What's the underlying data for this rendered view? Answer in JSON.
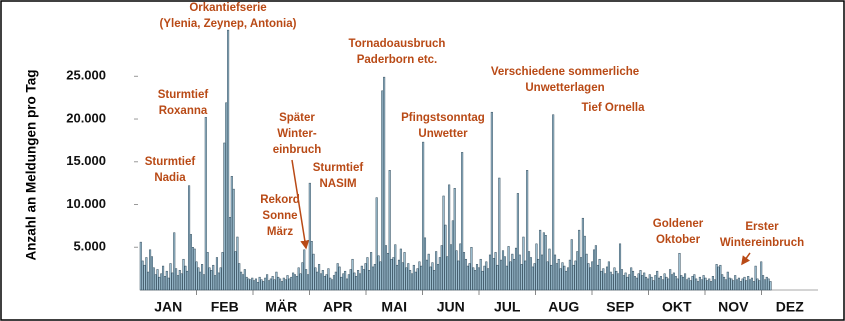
{
  "chart_data": {
    "type": "bar",
    "y_label": "Anzahl an Meldungen pro Tag",
    "month_labels": [
      "JAN",
      "FEB",
      "MÄR",
      "APR",
      "MAI",
      "JUN",
      "JUL",
      "AUG",
      "SEP",
      "OKT",
      "NOV",
      "DEZ"
    ],
    "values": [
      5600,
      3400,
      2900,
      3800,
      2100,
      4700,
      3900,
      2600,
      1800,
      2400,
      1500,
      1900,
      2800,
      1600,
      2200,
      1400,
      3100,
      2000,
      6700,
      2500,
      1700,
      2300,
      1900,
      3600,
      2800,
      2200,
      12200,
      6500,
      5000,
      4800,
      3300,
      2600,
      2100,
      3000,
      1800,
      20200,
      4400,
      2600,
      2300,
      2900,
      1700,
      3800,
      2000,
      2600,
      4400,
      17200,
      21900,
      30400,
      8500,
      13300,
      11800,
      4500,
      6200,
      3100,
      2100,
      1800,
      2400,
      1500,
      1300,
      1200,
      1400,
      1100,
      1300,
      900,
      1500,
      1200,
      1000,
      1400,
      1800,
      1100,
      1300,
      1600,
      1200,
      2100,
      1500,
      1300,
      1000,
      1400,
      1200,
      1700,
      1300,
      1500,
      2000,
      1800,
      1600,
      2600,
      1900,
      3200,
      4700,
      2400,
      1800,
      12500,
      5700,
      4200,
      2600,
      2100,
      3000,
      1900,
      2300,
      1600,
      1800,
      2500,
      1400,
      1200,
      1700,
      2100,
      3100,
      2700,
      1500,
      1900,
      2200,
      1300,
      1800,
      2400,
      3600,
      2000,
      1600,
      2300,
      1900,
      2800,
      2400,
      3100,
      3800,
      2300,
      4400,
      2700,
      3000,
      10800,
      4000,
      3300,
      23300,
      24900,
      5200,
      4300,
      14000,
      3600,
      3800,
      5300,
      2900,
      3500,
      4800,
      3200,
      4400,
      2600,
      3100,
      2300,
      1900,
      2900,
      2100,
      2500,
      3300,
      2800,
      17300,
      6100,
      3500,
      4200,
      2700,
      3200,
      2300,
      4500,
      3000,
      3800,
      5200,
      11000,
      7600,
      3900,
      12300,
      5300,
      8100,
      11900,
      4600,
      3400,
      5400,
      16100,
      4400,
      3600,
      2800,
      3100,
      5000,
      2600,
      2300,
      3000,
      2600,
      3600,
      2200,
      2800,
      3300,
      2500,
      4100,
      20800,
      3700,
      4400,
      2900,
      13100,
      3500,
      4600,
      3900,
      2800,
      5100,
      3300,
      4200,
      3600,
      4900,
      11300,
      4100,
      3000,
      6200,
      3400,
      14000,
      4500,
      3800,
      2700,
      3100,
      5400,
      3600,
      7000,
      4100,
      6700,
      6400,
      3300,
      4800,
      2900,
      20500,
      4100,
      3100,
      3600,
      2500,
      3200,
      2800,
      2200,
      2600,
      3500,
      5900,
      2900,
      3400,
      4500,
      7000,
      3800,
      8400,
      6300,
      4200,
      3100,
      2600,
      3300,
      4700,
      5200,
      2900,
      3600,
      2200,
      2500,
      1900,
      2700,
      3300,
      2100,
      1800,
      2600,
      2200,
      1900,
      5400,
      2400,
      1700,
      2000,
      1500,
      1800,
      2600,
      2200,
      1600,
      1400,
      1900,
      2300,
      1700,
      2000,
      1500,
      1300,
      1800,
      1500,
      1100,
      1700,
      2200,
      1400,
      1600,
      1200,
      1900,
      1500,
      1300,
      2400,
      1800,
      2000,
      1600,
      1300,
      4300,
      1700,
      1500,
      1900,
      1200,
      1400,
      1100,
      1600,
      1800,
      1300,
      1000,
      1500,
      1200,
      1700,
      1400,
      1100,
      1300,
      1000,
      1600,
      1200,
      3000,
      2700,
      2900,
      1800,
      1500,
      1200,
      2100,
      1400,
      1300,
      1100,
      1700,
      1200,
      1400,
      1000,
      1300,
      1500,
      1100,
      1600,
      1200,
      1400,
      1000,
      2800,
      1300,
      1100,
      3300,
      1700,
      1200,
      1500,
      1300,
      1000
    ],
    "color": "#9fc0d2",
    "ylim": [
      0,
      31000
    ],
    "yticks": [
      {
        "value": 5000,
        "label": "5.000"
      },
      {
        "value": 10000,
        "label": "10.000"
      },
      {
        "value": 15000,
        "label": "15.000"
      },
      {
        "value": 20000,
        "label": "20.000"
      },
      {
        "value": 25000,
        "label": "25.000"
      }
    ],
    "annotation_color": "#b94a16",
    "annotations": [
      {
        "lines": [
          "Orkantiefserie",
          "(Ylenia, Zeynep, Antonia)"
        ]
      },
      {
        "lines": [
          "Sturmtief",
          "Roxanna"
        ]
      },
      {
        "lines": [
          "Sturmtief",
          "Nadia"
        ]
      },
      {
        "lines": [
          "Später",
          "Winter-",
          "einbruch"
        ]
      },
      {
        "lines": [
          "Sturmtief",
          "NASIM"
        ]
      },
      {
        "lines": [
          "Rekord",
          "Sonne",
          "März"
        ]
      },
      {
        "lines": [
          "Tornadoausbruch",
          "Paderborn etc."
        ]
      },
      {
        "lines": [
          "Verschiedene sommerliche",
          "Unwetterlagen"
        ]
      },
      {
        "lines": [
          "Pfingstsonntag",
          "Unwetter"
        ]
      },
      {
        "lines": [
          "Tief Ornella"
        ]
      },
      {
        "lines": [
          "Goldener",
          "Oktober"
        ]
      },
      {
        "lines": [
          "Erster",
          "Wintereinbruch"
        ]
      }
    ]
  }
}
